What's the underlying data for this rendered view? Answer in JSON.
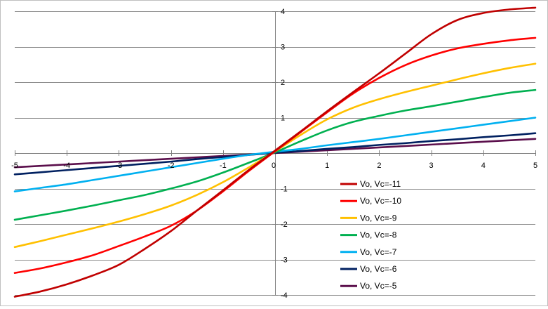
{
  "chart_data": {
    "type": "line",
    "title": "",
    "xlabel": "",
    "ylabel": "",
    "xlim": [
      -5,
      5
    ],
    "ylim": [
      -4,
      4
    ],
    "x_ticks": [
      "-5",
      "-4",
      "-3",
      "-2",
      "-1",
      "0",
      "1",
      "2",
      "3",
      "4",
      "5"
    ],
    "y_ticks": [
      "4",
      "3",
      "2",
      "1",
      "0",
      "-1",
      "-2",
      "-3",
      "-4"
    ],
    "grid": "horizontal major gridlines",
    "legend_position": "bottom-right",
    "x": [
      -5,
      -4.5,
      -4,
      -3.5,
      -3,
      -2.5,
      -2,
      -1.5,
      -1,
      -0.5,
      0,
      0.5,
      1,
      1.5,
      2,
      2.5,
      3,
      3.5,
      4,
      4.5,
      5
    ],
    "series": [
      {
        "name": "Vo, Vc=-11",
        "color": "#c00000",
        "values": [
          -4.05,
          -3.9,
          -3.7,
          -3.45,
          -3.15,
          -2.7,
          -2.2,
          -1.62,
          -1.05,
          -0.47,
          0.07,
          0.62,
          1.18,
          1.72,
          2.25,
          2.8,
          3.35,
          3.75,
          3.95,
          4.05,
          4.1
        ]
      },
      {
        "name": "Vo, Vc=-10",
        "color": "#ff0000",
        "values": [
          -3.38,
          -3.25,
          -3.08,
          -2.88,
          -2.62,
          -2.35,
          -2.05,
          -1.62,
          -1.08,
          -0.5,
          0.05,
          0.6,
          1.15,
          1.68,
          2.12,
          2.48,
          2.75,
          2.95,
          3.08,
          3.18,
          3.25
        ]
      },
      {
        "name": "Vo, Vc=-9",
        "color": "#ffc000",
        "values": [
          -2.65,
          -2.48,
          -2.3,
          -2.12,
          -1.93,
          -1.72,
          -1.48,
          -1.18,
          -0.82,
          -0.4,
          0.05,
          0.52,
          0.95,
          1.28,
          1.52,
          1.72,
          1.9,
          2.08,
          2.25,
          2.4,
          2.52
        ]
      },
      {
        "name": "Vo, Vc=-8",
        "color": "#00b050",
        "values": [
          -1.88,
          -1.75,
          -1.62,
          -1.48,
          -1.33,
          -1.18,
          -1.0,
          -0.8,
          -0.55,
          -0.27,
          0.02,
          0.34,
          0.64,
          0.88,
          1.05,
          1.2,
          1.32,
          1.45,
          1.58,
          1.7,
          1.78
        ]
      },
      {
        "name": "Vo, Vc=-7",
        "color": "#00b0f0",
        "values": [
          -1.08,
          -0.98,
          -0.88,
          -0.76,
          -0.64,
          -0.52,
          -0.4,
          -0.28,
          -0.16,
          -0.05,
          0.04,
          0.12,
          0.22,
          0.31,
          0.4,
          0.5,
          0.6,
          0.7,
          0.8,
          0.9,
          1.0
        ]
      },
      {
        "name": "Vo, Vc=-6",
        "color": "#002060",
        "values": [
          -0.6,
          -0.54,
          -0.48,
          -0.42,
          -0.36,
          -0.3,
          -0.24,
          -0.17,
          -0.11,
          -0.05,
          0.01,
          0.06,
          0.12,
          0.17,
          0.23,
          0.28,
          0.34,
          0.39,
          0.45,
          0.5,
          0.56
        ]
      },
      {
        "name": "Vo, Vc=-5",
        "color": "#5b0f4c",
        "values": [
          -0.4,
          -0.36,
          -0.32,
          -0.28,
          -0.24,
          -0.2,
          -0.16,
          -0.12,
          -0.08,
          -0.04,
          0.0,
          0.04,
          0.08,
          0.12,
          0.16,
          0.2,
          0.24,
          0.28,
          0.32,
          0.36,
          0.4
        ]
      }
    ]
  }
}
